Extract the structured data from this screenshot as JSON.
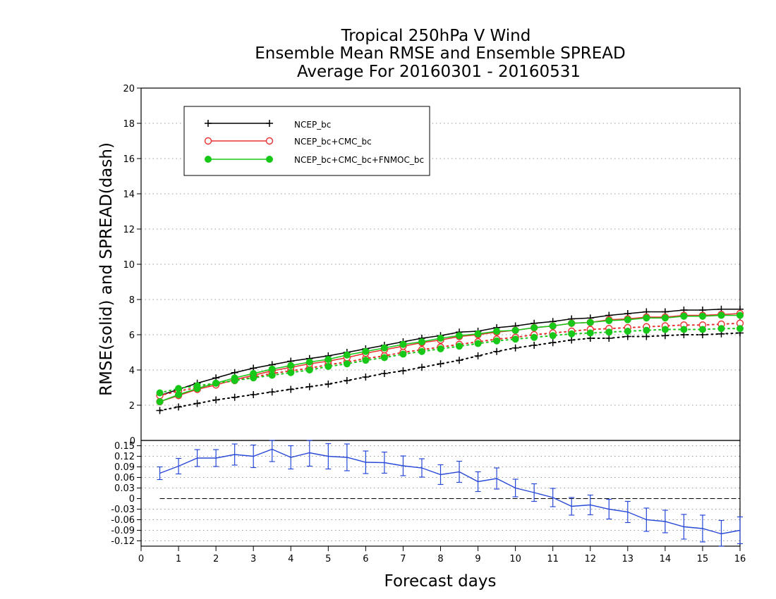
{
  "chart_data": {
    "type": "line",
    "title": [
      "Tropical 250hPa V Wind",
      "Ensemble Mean RMSE and Ensemble SPREAD",
      "Average For 20160301 - 20160531"
    ],
    "xlabel": "Forecast days",
    "ylabel": "RMSE(solid) and SPREAD(dash)",
    "xlim": [
      0,
      16
    ],
    "x_ticks": [
      0,
      1,
      2,
      3,
      4,
      5,
      6,
      7,
      8,
      9,
      10,
      11,
      12,
      13,
      14,
      15,
      16
    ],
    "x_tick_labels": [
      "0",
      "1",
      "2",
      "3",
      "4",
      "5",
      "6",
      "7",
      "8",
      "9",
      "10",
      "11",
      "12",
      "13",
      "14",
      "15",
      "16"
    ],
    "top_panel": {
      "ylim": [
        0,
        20
      ],
      "y_ticks": [
        2,
        4,
        6,
        8,
        10,
        12,
        14,
        16,
        18,
        20
      ],
      "y_tick_labels": [
        "2",
        "4",
        "6",
        "8",
        "10",
        "12",
        "14",
        "16",
        "18",
        "20"
      ],
      "grid": "horizontal dotted",
      "legend_position": "top-left",
      "x": [
        0.5,
        1,
        1.5,
        2,
        2.5,
        3,
        3.5,
        4,
        4.5,
        5,
        5.5,
        6,
        6.5,
        7,
        7.5,
        8,
        8.5,
        9,
        9.5,
        10,
        10.5,
        11,
        11.5,
        12,
        12.5,
        13,
        13.5,
        14,
        14.5,
        15,
        15.5,
        16
      ],
      "series": [
        {
          "name": "NCEP_bc",
          "color": "#000000",
          "marker": "plus",
          "rmse": [
            2.55,
            2.9,
            3.25,
            3.55,
            3.85,
            4.1,
            4.3,
            4.5,
            4.65,
            4.8,
            5.0,
            5.2,
            5.4,
            5.6,
            5.8,
            5.95,
            6.15,
            6.2,
            6.4,
            6.5,
            6.65,
            6.75,
            6.9,
            6.95,
            7.1,
            7.2,
            7.3,
            7.3,
            7.4,
            7.4,
            7.45,
            7.45
          ],
          "spread": [
            1.7,
            1.9,
            2.1,
            2.3,
            2.45,
            2.6,
            2.75,
            2.9,
            3.05,
            3.2,
            3.4,
            3.6,
            3.8,
            3.95,
            4.15,
            4.35,
            4.55,
            4.8,
            5.05,
            5.25,
            5.4,
            5.55,
            5.7,
            5.8,
            5.8,
            5.9,
            5.9,
            5.95,
            6.0,
            6.0,
            6.05,
            6.1
          ]
        },
        {
          "name": "NCEP_bc+CMC_bc",
          "color": "#e83030",
          "marker": "open-circle",
          "rmse": [
            2.2,
            2.55,
            2.9,
            3.15,
            3.45,
            3.7,
            3.95,
            4.15,
            4.35,
            4.5,
            4.7,
            4.95,
            5.15,
            5.35,
            5.55,
            5.7,
            5.9,
            6.0,
            6.15,
            6.25,
            6.4,
            6.5,
            6.65,
            6.7,
            6.85,
            6.9,
            7.0,
            7.0,
            7.1,
            7.1,
            7.15,
            7.2
          ],
          "spread": [
            2.55,
            2.8,
            3.0,
            3.2,
            3.4,
            3.6,
            3.8,
            3.95,
            4.1,
            4.3,
            4.45,
            4.65,
            4.8,
            5.0,
            5.15,
            5.3,
            5.45,
            5.6,
            5.75,
            5.85,
            6.0,
            6.1,
            6.2,
            6.3,
            6.35,
            6.4,
            6.45,
            6.5,
            6.55,
            6.55,
            6.6,
            6.65
          ]
        },
        {
          "name": "NCEP_bc+CMC_bc+FNMOC_bc",
          "color": "#18c818",
          "marker": "filled-circle",
          "rmse": [
            2.2,
            2.6,
            2.95,
            3.25,
            3.55,
            3.8,
            4.05,
            4.25,
            4.45,
            4.6,
            4.85,
            5.05,
            5.25,
            5.45,
            5.6,
            5.8,
            5.95,
            6.05,
            6.2,
            6.25,
            6.4,
            6.5,
            6.65,
            6.7,
            6.8,
            6.85,
            6.95,
            6.95,
            7.05,
            7.05,
            7.1,
            7.1
          ],
          "spread": [
            2.7,
            2.95,
            3.1,
            3.25,
            3.4,
            3.55,
            3.7,
            3.85,
            4.0,
            4.2,
            4.35,
            4.55,
            4.7,
            4.9,
            5.05,
            5.2,
            5.35,
            5.5,
            5.65,
            5.75,
            5.85,
            5.95,
            6.05,
            6.1,
            6.15,
            6.2,
            6.25,
            6.3,
            6.3,
            6.3,
            6.35,
            6.35
          ]
        }
      ]
    },
    "bottom_panel": {
      "ylim": [
        -0.135,
        0.165
      ],
      "y_ticks": [
        -0.12,
        -0.09,
        -0.06,
        -0.03,
        0,
        0.03,
        0.06,
        0.09,
        0.12,
        0.15
      ],
      "y_tick_labels": [
        "-0.12",
        "-0.09",
        "-0.06",
        "-0.03",
        "0",
        "0.03",
        "0.06",
        "0.09",
        "0.12",
        "0.15"
      ],
      "top_label": "0",
      "grid": "horizontal dotted",
      "zero_line": "dashed",
      "color": "#2848d8",
      "x": [
        0.5,
        1,
        1.5,
        2,
        2.5,
        3,
        3.5,
        4,
        4.5,
        5,
        5.5,
        6,
        6.5,
        7,
        7.5,
        8,
        8.5,
        9,
        9.5,
        10,
        10.5,
        11,
        11.5,
        12,
        12.5,
        13,
        13.5,
        14,
        14.5,
        15,
        15.5,
        16
      ],
      "values": [
        0.072,
        0.092,
        0.115,
        0.115,
        0.125,
        0.12,
        0.14,
        0.117,
        0.13,
        0.12,
        0.117,
        0.103,
        0.102,
        0.093,
        0.087,
        0.068,
        0.076,
        0.048,
        0.057,
        0.03,
        0.017,
        0.003,
        -0.022,
        -0.018,
        -0.03,
        -0.038,
        -0.06,
        -0.065,
        -0.08,
        -0.085,
        -0.1,
        -0.09
      ],
      "error": [
        0.018,
        0.022,
        0.024,
        0.024,
        0.03,
        0.032,
        0.035,
        0.033,
        0.038,
        0.036,
        0.038,
        0.032,
        0.03,
        0.028,
        0.026,
        0.028,
        0.03,
        0.028,
        0.03,
        0.025,
        0.025,
        0.026,
        0.025,
        0.028,
        0.028,
        0.03,
        0.033,
        0.032,
        0.035,
        0.038,
        0.038,
        0.038
      ]
    }
  }
}
